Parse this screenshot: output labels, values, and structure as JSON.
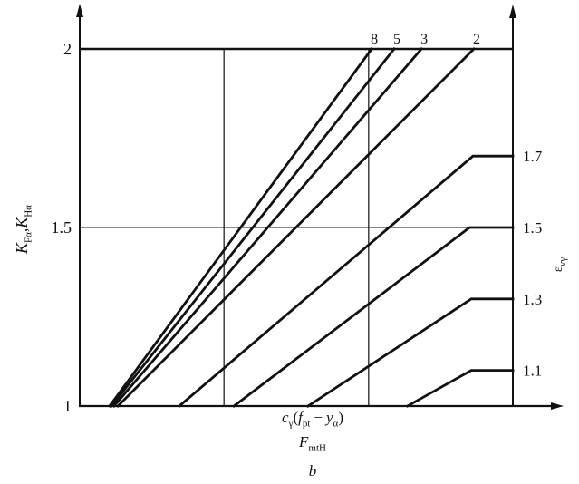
{
  "figure": {
    "background": "#ffffff",
    "ink": "#111111"
  },
  "y_axis": {
    "label_parts": {
      "K1": "K",
      "K1_sub": "Fα",
      "comma": ",",
      "K2": "K",
      "K2_sub": "Hα"
    },
    "ticks": [
      {
        "value": "1",
        "K": 1
      },
      {
        "value": "1.5",
        "K": 1.5
      },
      {
        "value": "2",
        "K": 2
      }
    ]
  },
  "right_axis": {
    "label_parts": {
      "eps": "ε",
      "eps_sub": "vγ"
    }
  },
  "x_axis": {
    "formula": {
      "c": "c",
      "c_sub": "γ",
      "open": "(",
      "f": "f",
      "f_sub": "pt",
      "minus": "−",
      "y": "y",
      "y_sub": "α",
      "close": ")",
      "F": "F",
      "F_sub": "mtH",
      "b": "b"
    }
  },
  "chart_data": {
    "type": "line",
    "title": "",
    "ylabel_left": "K_Fα, K_Hα",
    "ylabel_right": "ε_vγ",
    "xlabel": "c_γ(f_pt − y_α) / (F_mtH / b)",
    "ylim": [
      1,
      2
    ],
    "x_note": "x axis has no numeric scale; x values are fractions 0–1 of plot width",
    "grid": {
      "vertical_x": [
        0.333,
        0.667
      ],
      "horizontal_K": [
        1.5
      ],
      "top_boundary_K": 2
    },
    "curves": [
      {
        "label": "8",
        "label_pos": "top",
        "points": [
          [
            0.069,
            1
          ],
          [
            0.674,
            2
          ]
        ]
      },
      {
        "label": "5",
        "label_pos": "top",
        "points": [
          [
            0.073,
            1
          ],
          [
            0.726,
            2
          ]
        ]
      },
      {
        "label": "3",
        "label_pos": "top",
        "points": [
          [
            0.079,
            1
          ],
          [
            0.789,
            2
          ]
        ]
      },
      {
        "label": "2",
        "label_pos": "top",
        "points": [
          [
            0.088,
            1
          ],
          [
            0.91,
            2
          ]
        ]
      },
      {
        "label": "1.7",
        "label_pos": "right",
        "points": [
          [
            0.23,
            1
          ],
          [
            0.908,
            1.7
          ],
          [
            1,
            1.7
          ]
        ]
      },
      {
        "label": "1.5",
        "label_pos": "right",
        "points": [
          [
            0.356,
            1
          ],
          [
            0.9,
            1.5
          ],
          [
            1,
            1.5
          ]
        ]
      },
      {
        "label": "1.3",
        "label_pos": "right",
        "points": [
          [
            0.527,
            1
          ],
          [
            0.904,
            1.3
          ],
          [
            1,
            1.3
          ]
        ]
      },
      {
        "label": "1.1",
        "label_pos": "right",
        "points": [
          [
            0.757,
            1
          ],
          [
            0.904,
            1.1
          ],
          [
            1,
            1.1
          ]
        ]
      }
    ]
  }
}
